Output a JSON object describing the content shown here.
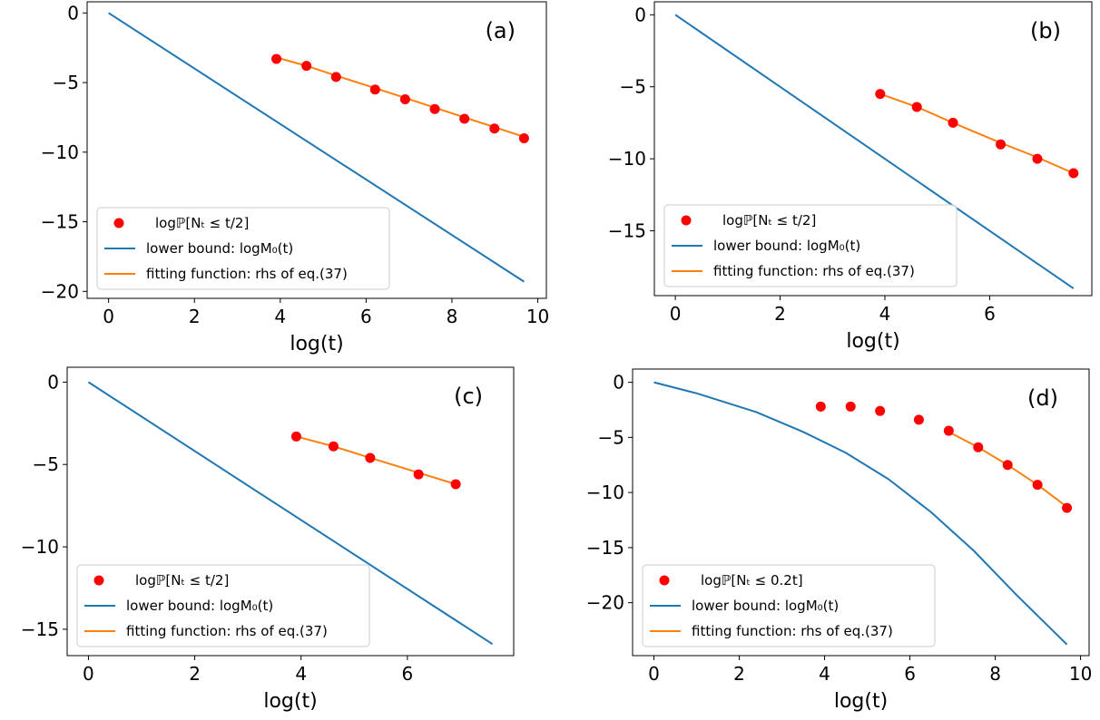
{
  "chart_data": [
    {
      "type": "line",
      "panel_label": "(a)",
      "xlabel": "log(t)",
      "ylabel": "",
      "xlim": [
        -0.5,
        10.2
      ],
      "ylim": [
        -20.5,
        0.8
      ],
      "xticks": [
        0,
        2,
        4,
        6,
        8,
        10
      ],
      "xtick_labels": [
        "0",
        "2",
        "4",
        "6",
        "8",
        "10"
      ],
      "yticks": [
        0,
        -5,
        -10,
        -15,
        -20
      ],
      "ytick_labels": [
        "0",
        "−5",
        "−10",
        "−15",
        "−20"
      ],
      "legend_position": "lower-left",
      "series": [
        {
          "name": "logℙ[Nₜ ≤ t/2]",
          "kind": "scatter",
          "color": "#ff0000",
          "x": [
            3.91,
            4.61,
            5.3,
            6.21,
            6.91,
            7.6,
            8.29,
            8.99,
            9.68
          ],
          "y": [
            -3.3,
            -3.8,
            -4.6,
            -5.5,
            -6.2,
            -6.9,
            -7.6,
            -8.3,
            -9.0
          ]
        },
        {
          "name": "lower bound: logM₀(t)",
          "kind": "line",
          "color": "#1f77b4",
          "x": [
            0,
            9.68
          ],
          "y": [
            0,
            -19.3
          ]
        },
        {
          "name": "fitting function: rhs of eq.(37)",
          "kind": "line",
          "color": "#ff7f0e",
          "x": [
            3.91,
            4.61,
            5.3,
            6.21,
            6.91,
            7.6,
            8.29,
            8.99,
            9.68
          ],
          "y": [
            -3.2,
            -3.8,
            -4.5,
            -5.4,
            -6.1,
            -6.8,
            -7.5,
            -8.2,
            -8.9
          ]
        }
      ]
    },
    {
      "type": "line",
      "panel_label": "(b)",
      "xlabel": "log(t)",
      "ylabel": "",
      "xlim": [
        -0.4,
        7.95
      ],
      "ylim": [
        -19.5,
        0.9
      ],
      "xticks": [
        0,
        2,
        4,
        6
      ],
      "xtick_labels": [
        "0",
        "2",
        "4",
        "6"
      ],
      "yticks": [
        0,
        -5,
        -10,
        -15
      ],
      "ytick_labels": [
        "0",
        "−5",
        "−10",
        "−15"
      ],
      "legend_position": "lower-left",
      "series": [
        {
          "name": "logℙ[Nₜ ≤ t/2]",
          "kind": "scatter",
          "color": "#ff0000",
          "x": [
            3.91,
            4.61,
            5.3,
            6.21,
            6.91,
            7.6
          ],
          "y": [
            -5.5,
            -6.4,
            -7.5,
            -9.0,
            -10.0,
            -11.0
          ]
        },
        {
          "name": "lower bound: logM₀(t)",
          "kind": "line",
          "color": "#1f77b4",
          "x": [
            0,
            7.6
          ],
          "y": [
            0,
            -19.0
          ]
        },
        {
          "name": "fitting function: rhs of eq.(37)",
          "kind": "line",
          "color": "#ff7f0e",
          "x": [
            3.91,
            4.61,
            5.3,
            6.21,
            6.91,
            7.6
          ],
          "y": [
            -5.5,
            -6.4,
            -7.5,
            -8.9,
            -9.9,
            -11.0
          ]
        }
      ]
    },
    {
      "type": "line",
      "panel_label": "(c)",
      "xlabel": "log(t)",
      "ylabel": "",
      "xlim": [
        -0.4,
        8.0
      ],
      "ylim": [
        -16.6,
        0.9
      ],
      "xticks": [
        0,
        2,
        4,
        6
      ],
      "xtick_labels": [
        "0",
        "2",
        "4",
        "6"
      ],
      "yticks": [
        0,
        -5,
        -10,
        -15
      ],
      "ytick_labels": [
        "0",
        "−5",
        "−10",
        "−15"
      ],
      "legend_position": "lower-left",
      "series": [
        {
          "name": "logℙ[Nₜ ≤ t/2]",
          "kind": "scatter",
          "color": "#ff0000",
          "x": [
            3.91,
            4.61,
            5.3,
            6.21,
            6.91
          ],
          "y": [
            -3.3,
            -3.9,
            -4.6,
            -5.6,
            -6.2
          ]
        },
        {
          "name": "lower bound: logM₀(t)",
          "kind": "line",
          "color": "#1f77b4",
          "x": [
            0,
            7.6
          ],
          "y": [
            0,
            -15.9
          ]
        },
        {
          "name": "fitting function: rhs of eq.(37)",
          "kind": "line",
          "color": "#ff7f0e",
          "x": [
            3.91,
            4.61,
            5.3,
            6.21,
            6.91
          ],
          "y": [
            -3.3,
            -3.9,
            -4.6,
            -5.5,
            -6.2
          ]
        }
      ]
    },
    {
      "type": "line",
      "panel_label": "(d)",
      "xlabel": "log(t)",
      "ylabel": "",
      "xlim": [
        -0.5,
        10.2
      ],
      "ylim": [
        -24.8,
        1.2
      ],
      "xticks": [
        0,
        2,
        4,
        6,
        8,
        10
      ],
      "xtick_labels": [
        "0",
        "2",
        "4",
        "6",
        "8",
        "10"
      ],
      "yticks": [
        0,
        -5,
        -10,
        -15,
        -20
      ],
      "ytick_labels": [
        "0",
        "−5",
        "−10",
        "−15",
        "−20"
      ],
      "legend_position": "lower-left",
      "series": [
        {
          "name": "logℙ[Nₜ ≤ 0.2t]",
          "kind": "scatter",
          "color": "#ff0000",
          "x": [
            3.91,
            4.61,
            5.3,
            6.21,
            6.91,
            7.6,
            8.29,
            8.99,
            9.68
          ],
          "y": [
            -2.2,
            -2.2,
            -2.6,
            -3.4,
            -4.4,
            -5.9,
            -7.5,
            -9.3,
            -11.4
          ]
        },
        {
          "name": "lower bound: logM₀(t)",
          "kind": "line",
          "color": "#1f77b4",
          "x": [
            0,
            1,
            2.4,
            3.5,
            4.5,
            5.5,
            6.5,
            7.5,
            8.5,
            9.68
          ],
          "y": [
            0,
            -1.0,
            -2.7,
            -4.5,
            -6.4,
            -8.8,
            -11.8,
            -15.3,
            -19.3,
            -23.8
          ]
        },
        {
          "name": "fitting function: rhs of eq.(37)",
          "kind": "line",
          "color": "#ff7f0e",
          "x": [
            6.91,
            7.6,
            8.29,
            8.99,
            9.68
          ],
          "y": [
            -4.5,
            -5.9,
            -7.5,
            -9.3,
            -11.3
          ]
        }
      ]
    }
  ]
}
